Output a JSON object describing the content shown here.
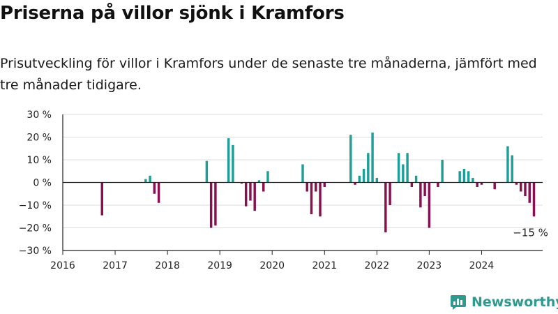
{
  "title": "Priserna på villor sjönk i Kramfors",
  "subtitle": "Prisutveckling för villor i Kramfors under de senaste tre månaderna, jämfört med tre månader tidigare.",
  "brand": {
    "name": "Newsworthy",
    "icon": "newsworthy-logo-icon"
  },
  "colors": {
    "positive": "#1e9e96",
    "negative": "#8a0f4e",
    "grid": "#dddddd",
    "axis": "#222222",
    "text": "#222222"
  },
  "chart_data": {
    "type": "bar",
    "x_unit": "month",
    "x_range": [
      "2016-01",
      "2025-03"
    ],
    "ylim": [
      -30,
      30
    ],
    "y_ticks": [
      30,
      20,
      10,
      0,
      -10,
      -20,
      -30
    ],
    "y_tick_labels": [
      "30 %",
      "20 %",
      "10 %",
      "0 %",
      "−10 %",
      "−20 %",
      "−30 %"
    ],
    "x_ticks": [
      "2016-01",
      "2017-01",
      "2018-01",
      "2019-01",
      "2020-01",
      "2021-01",
      "2022-01",
      "2023-01",
      "2024-01"
    ],
    "x_tick_labels": [
      "2016",
      "2017",
      "2018",
      "2019",
      "2020",
      "2021",
      "2022",
      "2023",
      "2024"
    ],
    "grid": true,
    "annotation": {
      "text": "−15 %",
      "x": "2024-12",
      "y": -15
    },
    "series": [
      {
        "x": "2016-10",
        "y": -14.5
      },
      {
        "x": "2017-08",
        "y": 1.5
      },
      {
        "x": "2017-09",
        "y": 3
      },
      {
        "x": "2017-10",
        "y": -5
      },
      {
        "x": "2017-11",
        "y": -9
      },
      {
        "x": "2018-10",
        "y": 9.5
      },
      {
        "x": "2018-11",
        "y": -20
      },
      {
        "x": "2018-12",
        "y": -19
      },
      {
        "x": "2019-03",
        "y": 19.5
      },
      {
        "x": "2019-04",
        "y": 16.5
      },
      {
        "x": "2019-06",
        "y": -0.5
      },
      {
        "x": "2019-07",
        "y": -10.5
      },
      {
        "x": "2019-08",
        "y": -8
      },
      {
        "x": "2019-09",
        "y": -12.5
      },
      {
        "x": "2019-10",
        "y": 1
      },
      {
        "x": "2019-11",
        "y": -4
      },
      {
        "x": "2019-12",
        "y": 5
      },
      {
        "x": "2020-08",
        "y": 8
      },
      {
        "x": "2020-09",
        "y": -4
      },
      {
        "x": "2020-10",
        "y": -14
      },
      {
        "x": "2020-11",
        "y": -4
      },
      {
        "x": "2020-12",
        "y": -15
      },
      {
        "x": "2021-01",
        "y": -2
      },
      {
        "x": "2021-07",
        "y": 21
      },
      {
        "x": "2021-08",
        "y": -1
      },
      {
        "x": "2021-09",
        "y": 3
      },
      {
        "x": "2021-10",
        "y": 6
      },
      {
        "x": "2021-11",
        "y": 13
      },
      {
        "x": "2021-12",
        "y": 22
      },
      {
        "x": "2022-01",
        "y": 2
      },
      {
        "x": "2022-03",
        "y": -22
      },
      {
        "x": "2022-04",
        "y": -10
      },
      {
        "x": "2022-06",
        "y": 13
      },
      {
        "x": "2022-07",
        "y": 8
      },
      {
        "x": "2022-08",
        "y": 13
      },
      {
        "x": "2022-09",
        "y": -2
      },
      {
        "x": "2022-10",
        "y": 3
      },
      {
        "x": "2022-11",
        "y": -11
      },
      {
        "x": "2022-12",
        "y": -6
      },
      {
        "x": "2023-01",
        "y": -20
      },
      {
        "x": "2023-03",
        "y": -2
      },
      {
        "x": "2023-04",
        "y": 10
      },
      {
        "x": "2023-08",
        "y": 5
      },
      {
        "x": "2023-09",
        "y": 6
      },
      {
        "x": "2023-10",
        "y": 5
      },
      {
        "x": "2023-11",
        "y": 2
      },
      {
        "x": "2023-12",
        "y": -2
      },
      {
        "x": "2024-01",
        "y": -1
      },
      {
        "x": "2024-04",
        "y": -3
      },
      {
        "x": "2024-07",
        "y": 16
      },
      {
        "x": "2024-08",
        "y": 12
      },
      {
        "x": "2024-09",
        "y": -1
      },
      {
        "x": "2024-10",
        "y": -4
      },
      {
        "x": "2024-11",
        "y": -6
      },
      {
        "x": "2024-12",
        "y": -9
      },
      {
        "x": "2025-01",
        "y": -15
      }
    ]
  }
}
